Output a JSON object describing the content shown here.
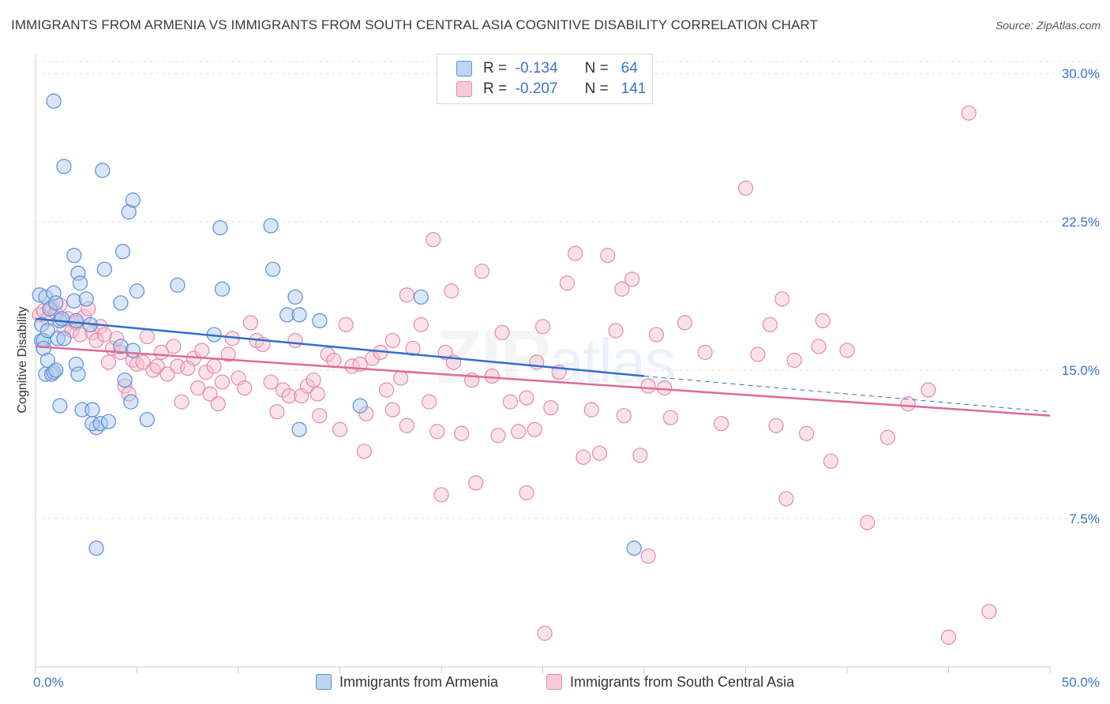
{
  "header": {
    "title": "IMMIGRANTS FROM ARMENIA VS IMMIGRANTS FROM SOUTH CENTRAL ASIA COGNITIVE DISABILITY CORRELATION CHART",
    "source": "Source: ZipAtlas.com"
  },
  "watermark": {
    "zip": "ZIP",
    "atlas": "atlas"
  },
  "stats": {
    "armenia": {
      "r_label": "R =",
      "r_value": "-0.134",
      "n_label": "N =",
      "n_value": "64"
    },
    "sca": {
      "r_label": "R =",
      "r_value": "-0.207",
      "n_label": "N =",
      "n_value": "141"
    }
  },
  "colors": {
    "armenia_fill": "#a9c8ef",
    "armenia_stroke": "#5b8fd6",
    "armenia_line": "#2f6fcf",
    "sca_fill": "#f6bfd0",
    "sca_stroke": "#e58aa8",
    "sca_line": "#e06a96",
    "tick_label": "#3a74c9",
    "grid": "#e3e3e3"
  },
  "chart_data": {
    "type": "scatter",
    "title": "IMMIGRANTS FROM ARMENIA VS IMMIGRANTS FROM SOUTH CENTRAL ASIA COGNITIVE DISABILITY CORRELATION CHART",
    "xlabel": "",
    "ylabel": "Cognitive Disability",
    "xlim": [
      0,
      50
    ],
    "ylim": [
      0,
      31
    ],
    "x_tick_labels": [
      "0.0%",
      "50.0%"
    ],
    "y_ticks": [
      7.5,
      15.0,
      22.5,
      30.0
    ],
    "y_tick_labels": [
      "7.5%",
      "15.0%",
      "22.5%",
      "30.0%"
    ],
    "grid": "horizontal dashed",
    "legend_position": "bottom",
    "series": [
      {
        "name": "Immigrants from Armenia",
        "trend": {
          "x": [
            0,
            30
          ],
          "y": [
            17.6,
            14.7
          ],
          "dashed_to": [
            50,
            12.9
          ]
        },
        "points": [
          [
            0.2,
            18.8
          ],
          [
            0.3,
            17.3
          ],
          [
            0.3,
            16.5
          ],
          [
            0.4,
            16.5
          ],
          [
            0.4,
            16.1
          ],
          [
            0.5,
            14.8
          ],
          [
            0.5,
            18.7
          ],
          [
            0.6,
            15.5
          ],
          [
            0.6,
            17.0
          ],
          [
            0.7,
            18.1
          ],
          [
            0.8,
            14.8
          ],
          [
            0.9,
            18.9
          ],
          [
            0.9,
            14.9
          ],
          [
            1.0,
            15.0
          ],
          [
            1.0,
            18.4
          ],
          [
            1.1,
            16.6
          ],
          [
            1.2,
            13.2
          ],
          [
            1.2,
            17.5
          ],
          [
            1.3,
            17.6
          ],
          [
            1.4,
            16.6
          ],
          [
            0.9,
            28.6
          ],
          [
            1.4,
            25.3
          ],
          [
            1.9,
            18.5
          ],
          [
            2.0,
            17.5
          ],
          [
            2.0,
            15.3
          ],
          [
            2.1,
            14.8
          ],
          [
            2.3,
            13.0
          ],
          [
            3.3,
            25.1
          ],
          [
            3.4,
            20.1
          ],
          [
            1.9,
            20.8
          ],
          [
            2.1,
            19.9
          ],
          [
            2.2,
            19.4
          ],
          [
            2.5,
            18.6
          ],
          [
            2.7,
            17.3
          ],
          [
            2.8,
            13.0
          ],
          [
            3.0,
            12.1
          ],
          [
            2.8,
            12.3
          ],
          [
            3.2,
            12.3
          ],
          [
            3.6,
            12.4
          ],
          [
            4.6,
            23.0
          ],
          [
            4.3,
            21.0
          ],
          [
            4.8,
            23.6
          ],
          [
            4.2,
            18.4
          ],
          [
            4.2,
            16.2
          ],
          [
            4.4,
            14.5
          ],
          [
            4.7,
            13.4
          ],
          [
            4.8,
            16.0
          ],
          [
            5.0,
            19.0
          ],
          [
            5.5,
            12.5
          ],
          [
            7.0,
            19.3
          ],
          [
            9.1,
            22.2
          ],
          [
            9.2,
            19.1
          ],
          [
            8.8,
            16.8
          ],
          [
            11.6,
            22.3
          ],
          [
            11.7,
            20.1
          ],
          [
            12.4,
            17.8
          ],
          [
            12.8,
            18.7
          ],
          [
            13.0,
            17.8
          ],
          [
            13.0,
            12.0
          ],
          [
            14.0,
            17.5
          ],
          [
            16.0,
            13.2
          ],
          [
            19.0,
            18.7
          ],
          [
            29.5,
            6.0
          ],
          [
            3.0,
            6.0
          ]
        ]
      },
      {
        "name": "Immigrants from South Central Asia",
        "trend": {
          "x": [
            0,
            50
          ],
          "y": [
            16.2,
            12.7
          ]
        },
        "points": [
          [
            0.2,
            17.8
          ],
          [
            0.4,
            18.0
          ],
          [
            0.6,
            17.6
          ],
          [
            0.8,
            18.2
          ],
          [
            1.0,
            17.9
          ],
          [
            1.2,
            18.3
          ],
          [
            1.4,
            17.1
          ],
          [
            1.6,
            17.6
          ],
          [
            1.8,
            17.0
          ],
          [
            2.0,
            17.4
          ],
          [
            2.2,
            16.8
          ],
          [
            2.4,
            17.7
          ],
          [
            2.6,
            18.1
          ],
          [
            2.8,
            16.9
          ],
          [
            3.0,
            16.5
          ],
          [
            3.2,
            17.2
          ],
          [
            3.4,
            16.8
          ],
          [
            3.6,
            15.4
          ],
          [
            3.8,
            16.1
          ],
          [
            4.0,
            16.6
          ],
          [
            4.2,
            15.9
          ],
          [
            4.4,
            14.2
          ],
          [
            4.6,
            13.8
          ],
          [
            4.8,
            15.5
          ],
          [
            5.0,
            15.3
          ],
          [
            5.3,
            15.4
          ],
          [
            5.5,
            16.7
          ],
          [
            5.8,
            15.0
          ],
          [
            6.0,
            15.2
          ],
          [
            6.2,
            15.9
          ],
          [
            6.5,
            14.8
          ],
          [
            6.8,
            16.2
          ],
          [
            7.0,
            15.2
          ],
          [
            7.2,
            13.4
          ],
          [
            7.5,
            15.1
          ],
          [
            7.8,
            15.6
          ],
          [
            8.0,
            14.1
          ],
          [
            8.2,
            16.0
          ],
          [
            8.4,
            14.9
          ],
          [
            8.6,
            13.8
          ],
          [
            8.8,
            15.2
          ],
          [
            9.0,
            13.3
          ],
          [
            9.2,
            14.4
          ],
          [
            9.5,
            15.8
          ],
          [
            9.7,
            16.6
          ],
          [
            10.0,
            14.6
          ],
          [
            10.3,
            14.1
          ],
          [
            10.6,
            17.4
          ],
          [
            10.9,
            16.5
          ],
          [
            11.2,
            16.3
          ],
          [
            11.6,
            14.4
          ],
          [
            11.9,
            12.9
          ],
          [
            12.2,
            14.0
          ],
          [
            12.5,
            13.7
          ],
          [
            12.8,
            16.5
          ],
          [
            13.1,
            13.7
          ],
          [
            13.4,
            14.2
          ],
          [
            13.7,
            14.5
          ],
          [
            14.0,
            12.7
          ],
          [
            14.4,
            15.8
          ],
          [
            14.7,
            15.5
          ],
          [
            15.0,
            12.0
          ],
          [
            15.3,
            17.3
          ],
          [
            15.6,
            15.2
          ],
          [
            16.0,
            15.3
          ],
          [
            16.3,
            12.8
          ],
          [
            16.6,
            15.6
          ],
          [
            17.0,
            15.9
          ],
          [
            17.3,
            14.0
          ],
          [
            17.6,
            13.0
          ],
          [
            18.0,
            14.6
          ],
          [
            18.3,
            18.8
          ],
          [
            18.6,
            16.1
          ],
          [
            19.0,
            17.3
          ],
          [
            19.4,
            13.4
          ],
          [
            19.8,
            11.9
          ],
          [
            20.2,
            15.9
          ],
          [
            20.6,
            15.4
          ],
          [
            21.0,
            11.8
          ],
          [
            21.5,
            14.5
          ],
          [
            22.0,
            20.0
          ],
          [
            22.5,
            14.7
          ],
          [
            23.0,
            16.9
          ],
          [
            23.4,
            13.4
          ],
          [
            23.8,
            11.9
          ],
          [
            24.2,
            13.6
          ],
          [
            24.6,
            12.0
          ],
          [
            25.0,
            17.2
          ],
          [
            25.4,
            13.1
          ],
          [
            25.8,
            14.9
          ],
          [
            26.2,
            19.4
          ],
          [
            26.6,
            20.9
          ],
          [
            27.0,
            10.6
          ],
          [
            27.4,
            13.0
          ],
          [
            27.8,
            10.8
          ],
          [
            28.2,
            20.8
          ],
          [
            28.6,
            17.0
          ],
          [
            29.0,
            12.7
          ],
          [
            29.4,
            19.6
          ],
          [
            29.8,
            10.7
          ],
          [
            30.2,
            14.2
          ],
          [
            30.6,
            16.8
          ],
          [
            31.0,
            14.1
          ],
          [
            32.0,
            17.4
          ],
          [
            33.0,
            15.9
          ],
          [
            33.8,
            12.3
          ],
          [
            35.0,
            24.2
          ],
          [
            35.6,
            15.8
          ],
          [
            36.2,
            17.3
          ],
          [
            36.8,
            18.6
          ],
          [
            37.4,
            15.5
          ],
          [
            38.0,
            11.8
          ],
          [
            38.6,
            16.2
          ],
          [
            39.2,
            10.4
          ],
          [
            40.0,
            16.0
          ],
          [
            41.0,
            7.3
          ],
          [
            42.0,
            11.6
          ],
          [
            43.0,
            13.3
          ],
          [
            44.0,
            14.0
          ],
          [
            46.0,
            28.0
          ],
          [
            47.0,
            2.8
          ],
          [
            45.0,
            1.5
          ],
          [
            30.2,
            5.6
          ],
          [
            25.1,
            1.7
          ],
          [
            20.0,
            8.7
          ],
          [
            18.3,
            12.2
          ],
          [
            21.7,
            9.3
          ],
          [
            24.2,
            8.8
          ],
          [
            37.0,
            8.5
          ],
          [
            29.5,
            29.5
          ],
          [
            16.2,
            10.9
          ],
          [
            19.6,
            21.6
          ],
          [
            20.5,
            19.0
          ],
          [
            24.7,
            15.4
          ],
          [
            28.9,
            19.1
          ],
          [
            36.5,
            12.2
          ],
          [
            38.8,
            17.5
          ],
          [
            31.3,
            12.6
          ],
          [
            17.6,
            16.5
          ],
          [
            13.9,
            13.8
          ],
          [
            22.8,
            11.7
          ]
        ]
      }
    ]
  },
  "legend": {
    "armenia": "Immigrants from Armenia",
    "sca": "Immigrants from South Central Asia"
  }
}
